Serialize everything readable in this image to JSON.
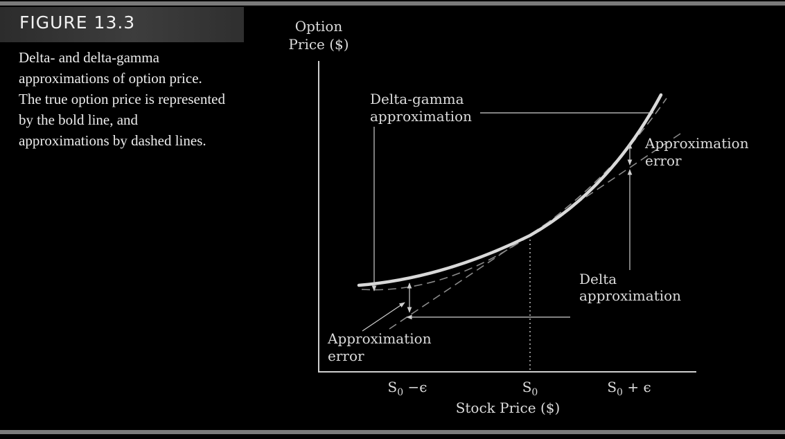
{
  "figure": {
    "label": "FIGURE 13.3",
    "caption": "Delta- and delta-gamma approximations of option price. The true option price is represented by the bold line, and approximations by dashed lines."
  },
  "diagram": {
    "y_axis_label_line1": "Option",
    "y_axis_label_line2": "Price ($)",
    "x_axis_label": "Stock Price ($)",
    "ticks": {
      "left": "S0 −ϵ",
      "center": "S0",
      "right": "S0 + ϵ"
    },
    "annotations": {
      "delta_gamma_line1": "Delta-gamma",
      "delta_gamma_line2": "approximation",
      "approx_error_right_line1": "Approximation",
      "approx_error_right_line2": "error",
      "delta_line1": "Delta",
      "delta_line2": "approximation",
      "approx_error_left_line1": "Approximation",
      "approx_error_left_line2": "error"
    },
    "colors": {
      "background": "#000000",
      "curve": "#d9d9d9",
      "dashed": "#8a8a8a",
      "text": "#dcdcdc"
    }
  }
}
